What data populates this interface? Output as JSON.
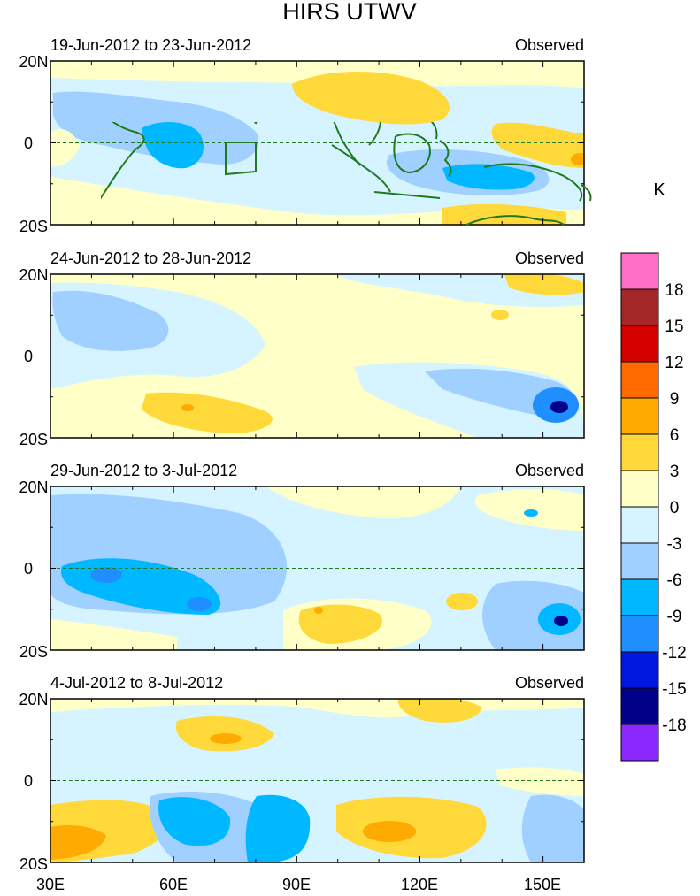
{
  "title": "HIRS UTWV",
  "panels": [
    {
      "period": "19-Jun-2012 to 23-Jun-2012",
      "label": "Observed"
    },
    {
      "period": "24-Jun-2012 to 28-Jun-2012",
      "label": "Observed"
    },
    {
      "period": "29-Jun-2012 to 3-Jul-2012",
      "label": "Observed"
    },
    {
      "period": "4-Jul-2012 to 8-Jul-2012",
      "label": "Observed"
    }
  ],
  "lat_labels": [
    "20N",
    "0",
    "20S"
  ],
  "lon_labels": [
    "30E",
    "60E",
    "90E",
    "120E",
    "150E"
  ],
  "colorbar": {
    "unit": "K",
    "tick_labels": [
      "18",
      "15",
      "12",
      "9",
      "6",
      "3",
      "0",
      "-3",
      "-6",
      "-9",
      "-12",
      "-15",
      "-18"
    ],
    "colors": [
      "#ff6ec7",
      "#a52828",
      "#d40000",
      "#ff6a00",
      "#ffaa00",
      "#ffd83a",
      "#ffffc8",
      "#d6f4ff",
      "#a0d0ff",
      "#00b8ff",
      "#1f8fff",
      "#0018dd",
      "#000088",
      "#8a28ff"
    ]
  },
  "colors": {
    "coastline": "#1f7a1f",
    "equator": "#1f7a1f"
  }
}
